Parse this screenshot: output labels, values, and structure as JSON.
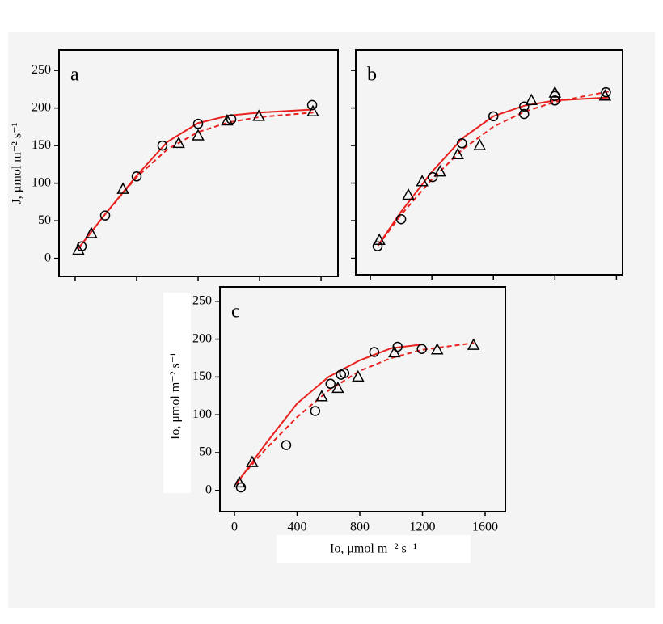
{
  "chart_data": [
    {
      "type": "scatter",
      "annotation": "a",
      "ylabel": "J, μmol m⁻² s⁻¹",
      "xlim": [
        -105,
        1710
      ],
      "ylim": [
        -24,
        277
      ],
      "xticks": [
        0,
        400,
        800,
        1200,
        1600
      ],
      "yticks": [
        0,
        50,
        100,
        150,
        200,
        250
      ],
      "xtick_labels": false,
      "ytick_labels": true,
      "series": [
        {
          "marker": "circle",
          "x": [
            42,
            195,
            400,
            568,
            800,
            1016,
            1542
          ],
          "values": [
            16,
            57,
            109,
            150,
            179,
            185,
            204
          ]
        },
        {
          "marker": "triangle",
          "x": [
            21,
            105,
            311,
            674,
            800,
            989,
            1195,
            1547
          ],
          "values": [
            11,
            33,
            92,
            153,
            163,
            183,
            189,
            195
          ]
        },
        {
          "line": "solid",
          "color": "#e8201e",
          "x": [
            20,
            200,
            400,
            600,
            800,
            1000,
            1200,
            1550
          ],
          "values": [
            13,
            60,
            110,
            155,
            180,
            190,
            194,
            198
          ]
        },
        {
          "line": "dashed",
          "color": "#e8201e",
          "x": [
            20,
            200,
            400,
            600,
            800,
            1000,
            1200,
            1550
          ],
          "values": [
            13,
            60,
            108,
            145,
            168,
            181,
            188,
            194
          ]
        }
      ]
    },
    {
      "type": "scatter",
      "annotation": "b",
      "xlim": [
        -95,
        1640
      ],
      "ylim": [
        -22,
        277
      ],
      "xticks": [
        0,
        400,
        800,
        1200,
        1600
      ],
      "yticks": [
        0,
        50,
        100,
        150,
        200,
        250
      ],
      "xtick_labels": false,
      "ytick_labels": false,
      "series": [
        {
          "marker": "circle",
          "x": [
            47,
            200,
            405,
            595,
            800,
            1000,
            1000,
            1200,
            1200,
            1532
          ],
          "values": [
            16,
            52,
            108,
            153,
            189,
            192,
            202,
            210,
            216,
            221
          ]
        },
        {
          "marker": "triangle",
          "x": [
            58,
            247,
            337,
            453,
            568,
            711,
            1047,
            1200,
            1526
          ],
          "values": [
            24,
            84,
            102,
            115,
            138,
            150,
            210,
            220,
            216
          ]
        },
        {
          "line": "solid",
          "color": "#e8201e",
          "x": [
            50,
            200,
            400,
            600,
            800,
            1000,
            1200,
            1550
          ],
          "values": [
            17,
            62,
            115,
            160,
            189,
            203,
            210,
            214
          ]
        },
        {
          "line": "dashed",
          "color": "#e8201e",
          "x": [
            50,
            200,
            400,
            600,
            800,
            1000,
            1200,
            1550
          ],
          "values": [
            17,
            58,
            105,
            145,
            175,
            195,
            208,
            222
          ]
        }
      ]
    },
    {
      "type": "scatter",
      "annotation": "c",
      "ylabel": "Io, μmol m⁻² s⁻¹",
      "xlabel": "Io, μmol m⁻² s⁻¹",
      "xlim": [
        -93,
        1729
      ],
      "ylim": [
        -28,
        269
      ],
      "xticks": [
        0,
        400,
        800,
        1200,
        1600
      ],
      "yticks": [
        0,
        50,
        100,
        150,
        200,
        250
      ],
      "xtick_labels": true,
      "ytick_labels": true,
      "series": [
        {
          "marker": "circle",
          "x": [
            41,
            330,
            515,
            613,
            680,
            701,
            892,
            1041,
            1196
          ],
          "values": [
            4,
            60,
            105,
            141,
            153,
            155,
            183,
            190,
            187
          ]
        },
        {
          "marker": "triangle",
          "x": [
            31,
            113,
            557,
            660,
            789,
            1021,
            1294,
            1526
          ],
          "values": [
            10,
            37,
            124,
            135,
            150,
            182,
            186,
            192
          ]
        },
        {
          "line": "solid",
          "color": "#e8201e",
          "x": [
            10,
            200,
            400,
            600,
            800,
            1000,
            1200
          ],
          "values": [
            8,
            62,
            115,
            150,
            172,
            188,
            193
          ]
        },
        {
          "line": "dashed",
          "color": "#e8201e",
          "x": [
            10,
            200,
            400,
            600,
            800,
            1000,
            1200,
            1530
          ],
          "values": [
            10,
            55,
            97,
            132,
            158,
            175,
            186,
            195
          ]
        }
      ]
    }
  ]
}
